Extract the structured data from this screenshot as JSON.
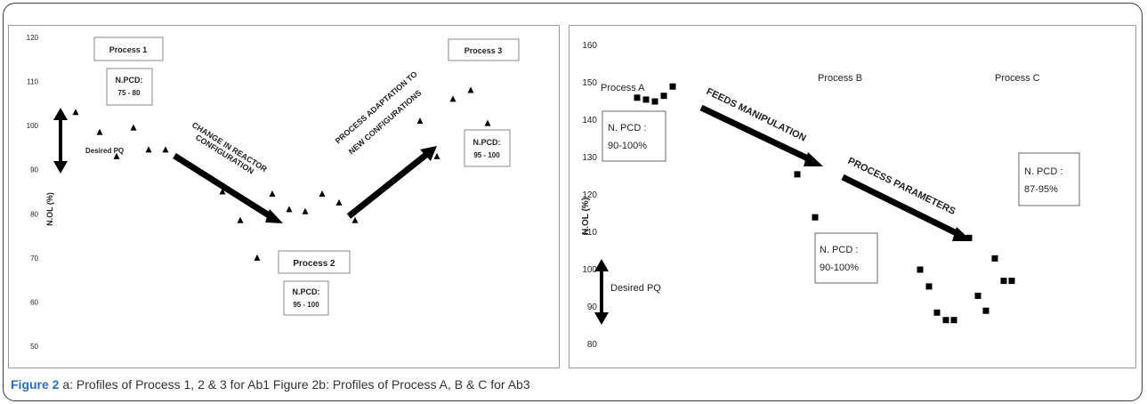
{
  "caption": {
    "label": "Figure 2",
    "text": "a: Profiles of Process 1, 2 & 3 for Ab1 Figure 2b: Profiles of Process A, B & C for Ab3"
  },
  "chart_data": [
    {
      "type": "scatter",
      "ylabel": "N.OL (%)",
      "ylim": [
        50,
        120
      ],
      "yticks": [
        50,
        60,
        70,
        80,
        90,
        100,
        110,
        120
      ],
      "grid": false,
      "marker": "triangle",
      "series": [
        {
          "x": [
            1,
            2,
            3,
            4,
            5,
            6,
            7,
            8,
            9,
            10,
            11,
            12,
            13,
            14,
            15,
            16,
            17,
            18,
            19,
            20,
            21
          ],
          "values": [
            103,
            98.5,
            93,
            99.5,
            94.5,
            94.5,
            85,
            78.5,
            70,
            84.5,
            81,
            80.5,
            84.5,
            82.5,
            78.5,
            101,
            93,
            106,
            108,
            100.5,
            70
          ]
        }
      ],
      "annotations": {
        "process_labels": [
          "Process 1",
          "Process 2",
          "Process 3"
        ],
        "pcd_boxes": [
          [
            "N.PCD:",
            "75 - 80"
          ],
          [
            "N.PCD:",
            "95 - 100"
          ],
          [
            "N.PCD:",
            "95 - 100"
          ]
        ],
        "arrows": [
          "CHANGE IN REACTOR",
          "CONFIGURATION",
          "PROCESS ADAPTATION TO",
          "NEW CONFIGURATIONS"
        ],
        "desired": "Desired PQ"
      }
    },
    {
      "type": "scatter",
      "ylabel": "N.OL (%)",
      "ylim": [
        80,
        160
      ],
      "yticks": [
        80,
        90,
        100,
        110,
        120,
        130,
        140,
        150,
        160
      ],
      "grid": false,
      "marker": "square",
      "series": [
        {
          "x": [
            1,
            2,
            3,
            4,
            5,
            6,
            7,
            8,
            9,
            10,
            11,
            12,
            13,
            14,
            15,
            16,
            17,
            18,
            19,
            20,
            21
          ],
          "values": [
            146,
            145.5,
            145,
            146.5,
            149,
            125.5,
            129.5,
            114,
            100,
            95.5,
            88.5,
            86.5,
            86.5,
            108.5,
            108.5,
            93,
            89,
            103,
            97,
            97,
            86
          ]
        }
      ],
      "annotations": {
        "process_labels": [
          "Process A",
          "Process B",
          "Process C"
        ],
        "pcd_boxes": [
          [
            "N. PCD :",
            "90-100%"
          ],
          [
            "N. PCD :",
            "90-100%"
          ],
          [
            "N. PCD :",
            "87-95%"
          ]
        ],
        "arrows": [
          "FEEDS MANIPULATION",
          "PROCESS PARAMETERS"
        ],
        "desired": "Desired PQ"
      }
    }
  ]
}
